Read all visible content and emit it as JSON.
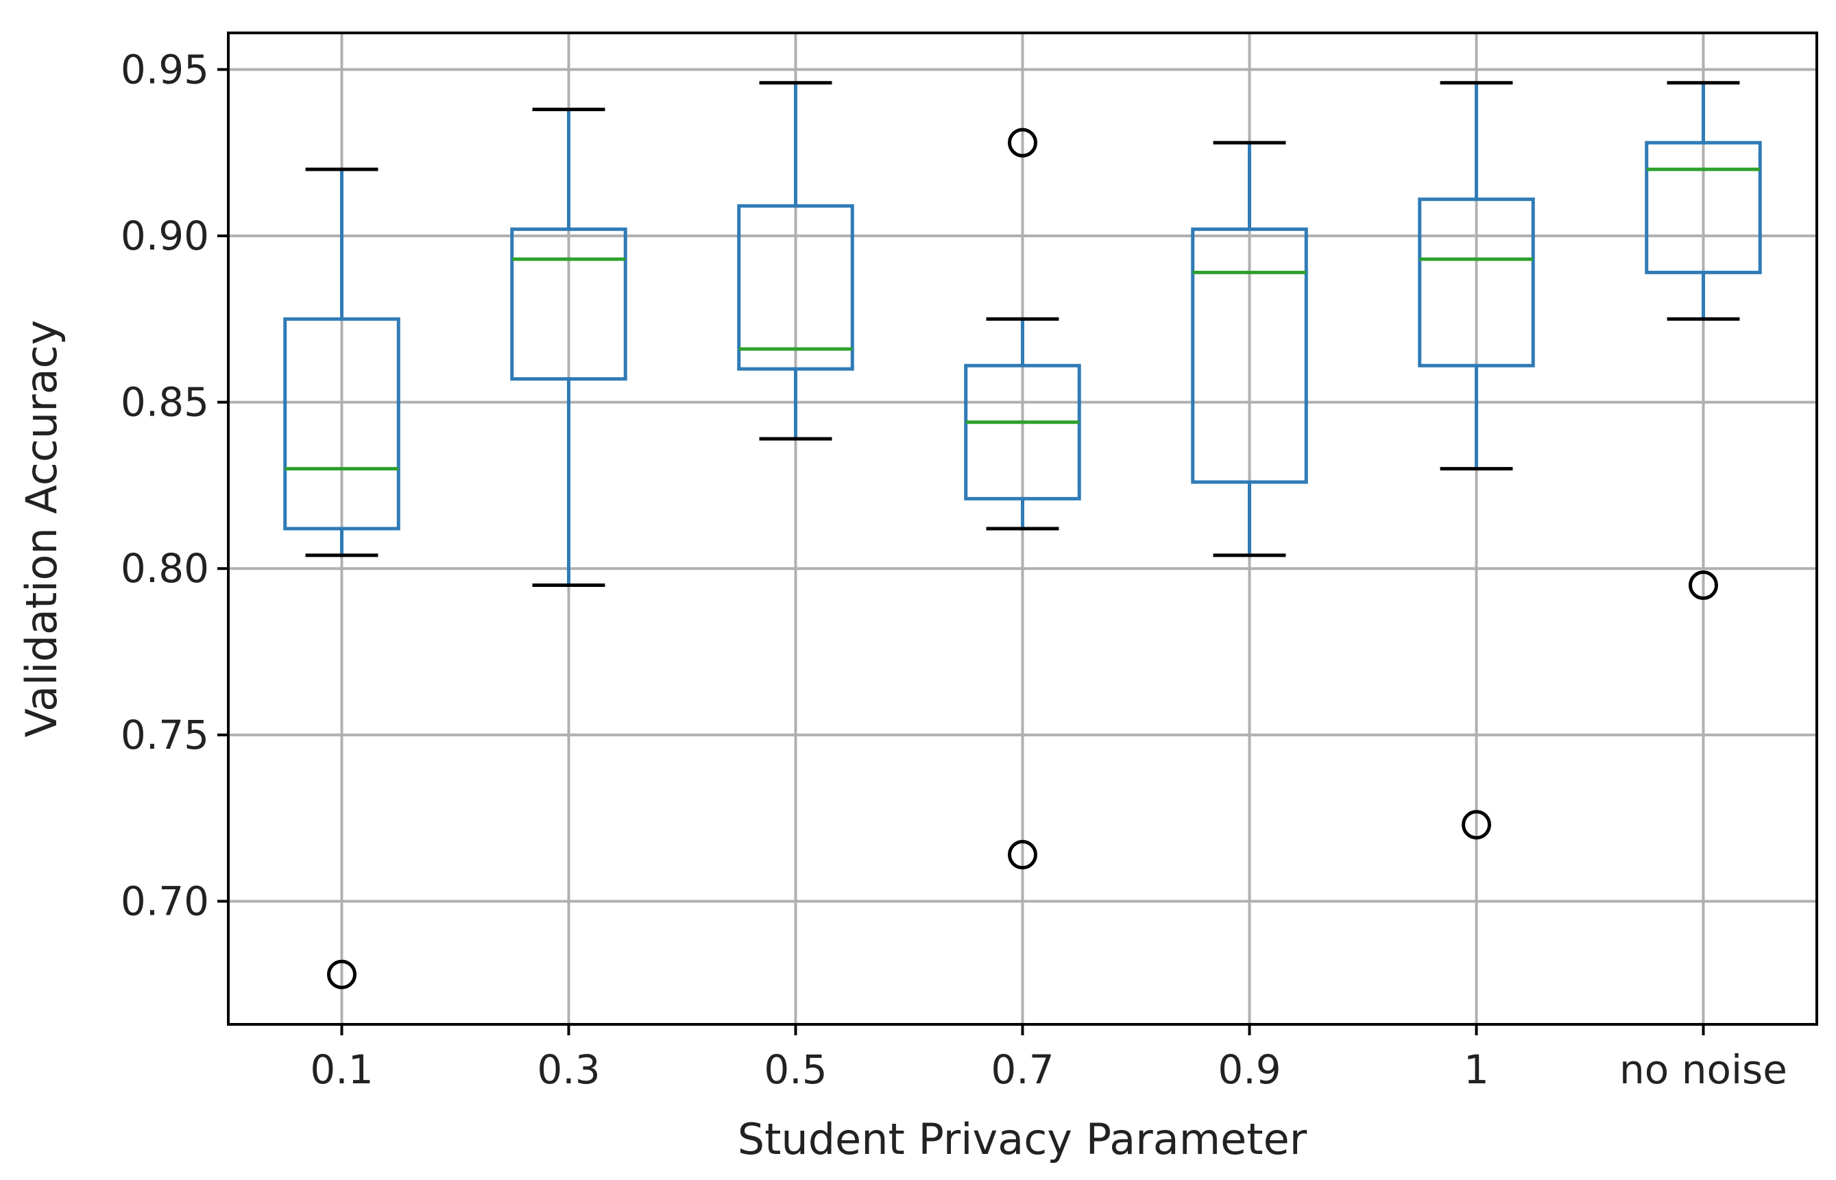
{
  "chart_data": {
    "type": "box",
    "title": "",
    "xlabel": "Student Privacy Parameter",
    "ylabel": "Validation Accuracy",
    "ylim": [
      0.663,
      0.961
    ],
    "yticks": [
      0.7,
      0.75,
      0.8,
      0.85,
      0.9,
      0.95
    ],
    "ytick_labels": [
      "0.70",
      "0.75",
      "0.80",
      "0.85",
      "0.90",
      "0.95"
    ],
    "grid": true,
    "categories": [
      "0.1",
      "0.3",
      "0.5",
      "0.7",
      "0.9",
      "1",
      "no noise"
    ],
    "boxes": [
      {
        "label": "0.1",
        "whisker_low": 0.804,
        "q1": 0.812,
        "median": 0.83,
        "q3": 0.875,
        "whisker_high": 0.92,
        "outliers": [
          0.678
        ]
      },
      {
        "label": "0.3",
        "whisker_low": 0.795,
        "q1": 0.857,
        "median": 0.893,
        "q3": 0.902,
        "whisker_high": 0.938,
        "outliers": []
      },
      {
        "label": "0.5",
        "whisker_low": 0.839,
        "q1": 0.86,
        "median": 0.866,
        "q3": 0.909,
        "whisker_high": 0.946,
        "outliers": []
      },
      {
        "label": "0.7",
        "whisker_low": 0.812,
        "q1": 0.821,
        "median": 0.844,
        "q3": 0.861,
        "whisker_high": 0.875,
        "outliers": [
          0.928,
          0.714
        ]
      },
      {
        "label": "0.9",
        "whisker_low": 0.804,
        "q1": 0.826,
        "median": 0.889,
        "q3": 0.902,
        "whisker_high": 0.928,
        "outliers": []
      },
      {
        "label": "1",
        "whisker_low": 0.83,
        "q1": 0.861,
        "median": 0.893,
        "q3": 0.911,
        "whisker_high": 0.946,
        "outliers": [
          0.723
        ]
      },
      {
        "label": "no noise",
        "whisker_low": 0.875,
        "q1": 0.889,
        "median": 0.92,
        "q3": 0.928,
        "whisker_high": 0.946,
        "outliers": [
          0.795
        ]
      }
    ],
    "colors": {
      "box": "#2f7bb6",
      "median": "#2ca02c",
      "whisker_cap": "#000000",
      "outlier": "#000000",
      "grid": "#b0b0b0",
      "axes": "#000000"
    }
  }
}
